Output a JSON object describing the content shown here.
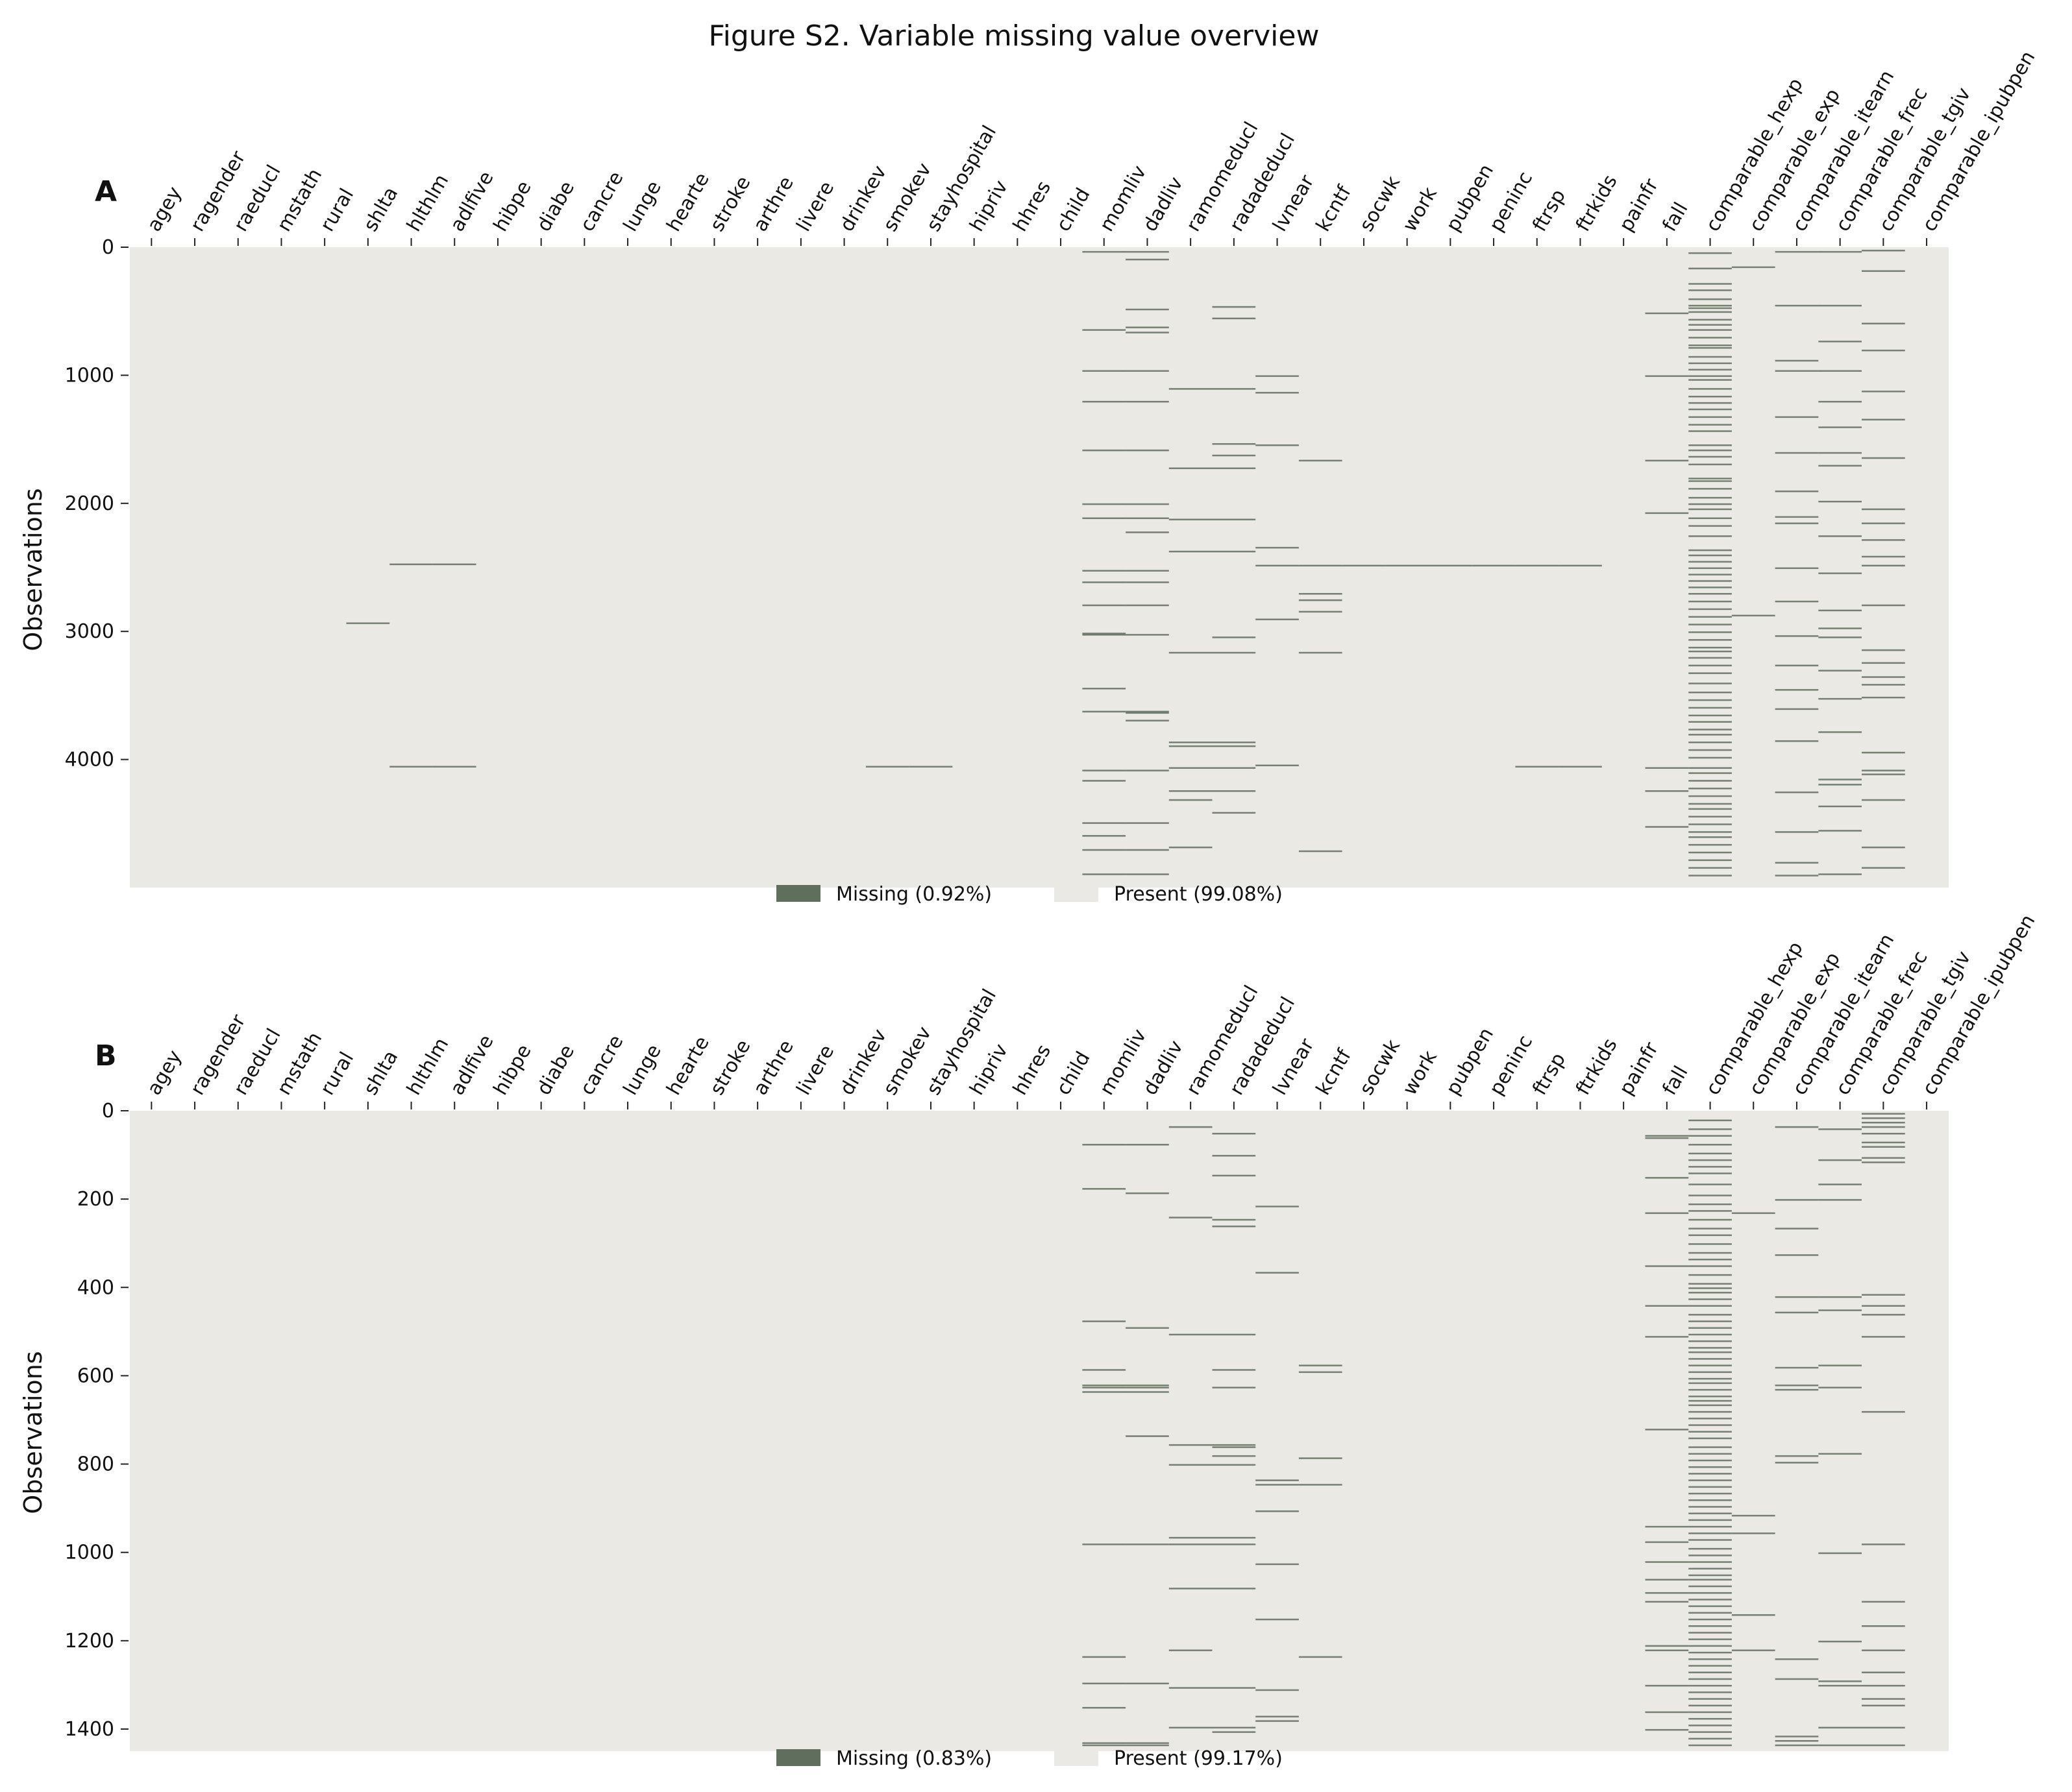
{
  "title": "Figure S2. Variable missing value overview",
  "colors": {
    "missing": "#5f6e5d",
    "present": "#ebe9e4",
    "tick": "#222222"
  },
  "chart_data": [
    {
      "type": "heatmap",
      "panel": "A",
      "ylabel": "Observations",
      "n_obs": 5000,
      "yticks": [
        0,
        1000,
        2000,
        3000,
        4000
      ],
      "columns": [
        "agey",
        "ragender",
        "raeducl",
        "mstath",
        "rural",
        "shlta",
        "hlthlm",
        "adlfive",
        "hibpe",
        "diabe",
        "cancre",
        "lunge",
        "hearte",
        "stroke",
        "arthre",
        "livere",
        "drinkev",
        "smokev",
        "stayhospital",
        "hipriv",
        "hhres",
        "child",
        "momliv",
        "dadliv",
        "ramomeducl",
        "radadeducl",
        "lvnear",
        "kcntf",
        "socwk",
        "work",
        "pubpen",
        "peninc",
        "ftrsp",
        "ftrkids",
        "painfr",
        "fall",
        "comparable_hexp",
        "comparable_exp",
        "comparable_itearn",
        "comparable_frec",
        "comparable_tgiv",
        "comparable_ipubpen"
      ],
      "legend": {
        "missing": "Missing (0.92%)",
        "present": "Present (99.08%)"
      },
      "missing_rows": {
        "shlta": [
          2930
        ],
        "hlthlm": [
          2470,
          4050
        ],
        "adlfive": [
          2470,
          4050
        ],
        "smokev": [
          4050
        ],
        "stayhospital": [
          4050
        ],
        "momliv": [
          30,
          640,
          960,
          1200,
          1580,
          2000,
          2110,
          2520,
          2610,
          2790,
          3010,
          3020,
          3440,
          3620,
          4080,
          4160,
          4490,
          4590,
          4700,
          4890
        ],
        "dadliv": [
          30,
          90,
          480,
          620,
          660,
          960,
          1200,
          1580,
          2000,
          2110,
          2220,
          2520,
          2610,
          2790,
          3020,
          3620,
          3630,
          3690,
          4080,
          4490,
          4700,
          4890
        ],
        "ramomeducl": [
          1100,
          1720,
          2120,
          2370,
          3160,
          3860,
          3890,
          4060,
          4240,
          4310,
          4680
        ],
        "radadeducl": [
          460,
          550,
          1100,
          1530,
          1620,
          1720,
          2120,
          2370,
          3040,
          3160,
          3860,
          3890,
          4060,
          4240,
          4410
        ],
        "lvnear": [
          1000,
          1130,
          1540,
          2340,
          2480,
          2900,
          4040
        ],
        "kcntf": [
          1660,
          2480,
          2700,
          2750,
          2840,
          3160,
          4710
        ],
        "socwk": [
          2480
        ],
        "work": [
          2480
        ],
        "pubpen": [
          2480
        ],
        "peninc": [
          2480
        ],
        "ftrsp": [
          2480,
          4050
        ],
        "ftrkids": [
          2480,
          4050
        ],
        "fall": [
          510,
          1000,
          1660,
          2070,
          4060,
          4240,
          4520
        ],
        "comparable_hexp": [
          40,
          160,
          280,
          330,
          400,
          450,
          470,
          500,
          560,
          600,
          640,
          700,
          760,
          780,
          850,
          900,
          950,
          1000,
          1030,
          1100,
          1160,
          1210,
          1260,
          1320,
          1380,
          1430,
          1540,
          1580,
          1630,
          1690,
          1800,
          1820,
          1880,
          1950,
          2000,
          2040,
          2110,
          2170,
          2250,
          2360,
          2400,
          2450,
          2500,
          2550,
          2600,
          2650,
          2700,
          2760,
          2820,
          2880,
          2940,
          3000,
          3060,
          3120,
          3150,
          3200,
          3260,
          3320,
          3400,
          3470,
          3530,
          3590,
          3650,
          3700,
          3760,
          3800,
          3860,
          3920,
          3980,
          4060,
          4100,
          4160,
          4220,
          4280,
          4340,
          4380,
          4440,
          4500,
          4560,
          4600,
          4660,
          4720,
          4780,
          4840,
          4900
        ],
        "comparable_exp": [
          150,
          2870
        ],
        "comparable_itearn": [
          30,
          450,
          880,
          960,
          1320,
          1600,
          1900,
          2100,
          2150,
          2500,
          2760,
          3030,
          3260,
          3450,
          3600,
          3850,
          4250,
          4560,
          4800,
          4900
        ],
        "comparable_frec": [
          30,
          450,
          730,
          960,
          1200,
          1400,
          1600,
          1700,
          1980,
          2250,
          2540,
          2830,
          2970,
          3040,
          3300,
          3520,
          3780,
          4150,
          4190,
          4360,
          4550,
          4890
        ],
        "comparable_tgiv": [
          20,
          180,
          590,
          800,
          1120,
          1340,
          1640,
          2040,
          2150,
          2280,
          2410,
          2480,
          2790,
          3140,
          3240,
          3350,
          3410,
          3510,
          3940,
          4080,
          4110,
          4310,
          4680,
          4840
        ]
      }
    },
    {
      "type": "heatmap",
      "panel": "B",
      "ylabel": "Observations",
      "n_obs": 1450,
      "yticks": [
        0,
        200,
        400,
        600,
        800,
        1000,
        1200,
        1400
      ],
      "columns": [
        "agey",
        "ragender",
        "raeducl",
        "mstath",
        "rural",
        "shlta",
        "hlthlm",
        "adlfive",
        "hibpe",
        "diabe",
        "cancre",
        "lunge",
        "hearte",
        "stroke",
        "arthre",
        "livere",
        "drinkev",
        "smokev",
        "stayhospital",
        "hipriv",
        "hhres",
        "child",
        "momliv",
        "dadliv",
        "ramomeducl",
        "radadeducl",
        "lvnear",
        "kcntf",
        "socwk",
        "work",
        "pubpen",
        "peninc",
        "ftrsp",
        "ftrkids",
        "painfr",
        "fall",
        "comparable_hexp",
        "comparable_exp",
        "comparable_itearn",
        "comparable_frec",
        "comparable_tgiv",
        "comparable_ipubpen"
      ],
      "legend": {
        "missing": "Missing (0.83%)",
        "present": "Present (99.17%)"
      },
      "missing_rows": {
        "momliv": [
          75,
          175,
          475,
          585,
          620,
          625,
          635,
          980,
          1235,
          1295,
          1350,
          1430,
          1435
        ],
        "dadliv": [
          75,
          185,
          490,
          620,
          625,
          635,
          735,
          980,
          1295,
          1430,
          1435
        ],
        "ramomeducl": [
          35,
          240,
          505,
          755,
          800,
          965,
          980,
          1080,
          1220,
          1305,
          1395
        ],
        "radadeducl": [
          50,
          100,
          145,
          245,
          260,
          505,
          585,
          625,
          755,
          760,
          780,
          800,
          965,
          980,
          1080,
          1305,
          1395,
          1405
        ],
        "lvnear": [
          215,
          365,
          835,
          845,
          905,
          1025,
          1150,
          1310,
          1370,
          1380
        ],
        "kcntf": [
          575,
          590,
          785,
          845,
          1235
        ],
        "fall": [
          55,
          60,
          150,
          230,
          350,
          440,
          510,
          720,
          940,
          975,
          1020,
          1060,
          1090,
          1110,
          1210,
          1220,
          1300,
          1360,
          1400
        ],
        "comparable_hexp": [
          20,
          40,
          55,
          75,
          95,
          110,
          125,
          140,
          165,
          190,
          210,
          225,
          245,
          265,
          280,
          300,
          320,
          335,
          350,
          370,
          390,
          400,
          410,
          425,
          440,
          460,
          475,
          490,
          505,
          520,
          535,
          545,
          560,
          575,
          590,
          605,
          615,
          630,
          645,
          655,
          665,
          680,
          695,
          710,
          725,
          740,
          760,
          775,
          790,
          805,
          820,
          835,
          850,
          865,
          880,
          895,
          910,
          925,
          940,
          955,
          970,
          990,
          1005,
          1020,
          1035,
          1050,
          1060,
          1075,
          1090,
          1105,
          1120,
          1135,
          1150,
          1165,
          1180,
          1195,
          1210,
          1225,
          1240,
          1255,
          1270,
          1285,
          1300,
          1315,
          1330,
          1345,
          1360,
          1375,
          1390,
          1405,
          1420,
          1435
        ],
        "comparable_exp": [
          230,
          915,
          955,
          1140,
          1220
        ],
        "comparable_itearn": [
          35,
          200,
          265,
          325,
          420,
          455,
          580,
          620,
          630,
          780,
          795,
          1240,
          1285,
          1415,
          1425,
          1435
        ],
        "comparable_frec": [
          40,
          110,
          165,
          200,
          420,
          450,
          575,
          625,
          775,
          1000,
          1200,
          1290,
          1300,
          1395,
          1435
        ],
        "comparable_tgiv": [
          5,
          15,
          25,
          35,
          50,
          70,
          80,
          105,
          115,
          415,
          440,
          460,
          510,
          680,
          980,
          1110,
          1165,
          1220,
          1270,
          1300,
          1330,
          1345,
          1395,
          1435
        ]
      }
    }
  ]
}
